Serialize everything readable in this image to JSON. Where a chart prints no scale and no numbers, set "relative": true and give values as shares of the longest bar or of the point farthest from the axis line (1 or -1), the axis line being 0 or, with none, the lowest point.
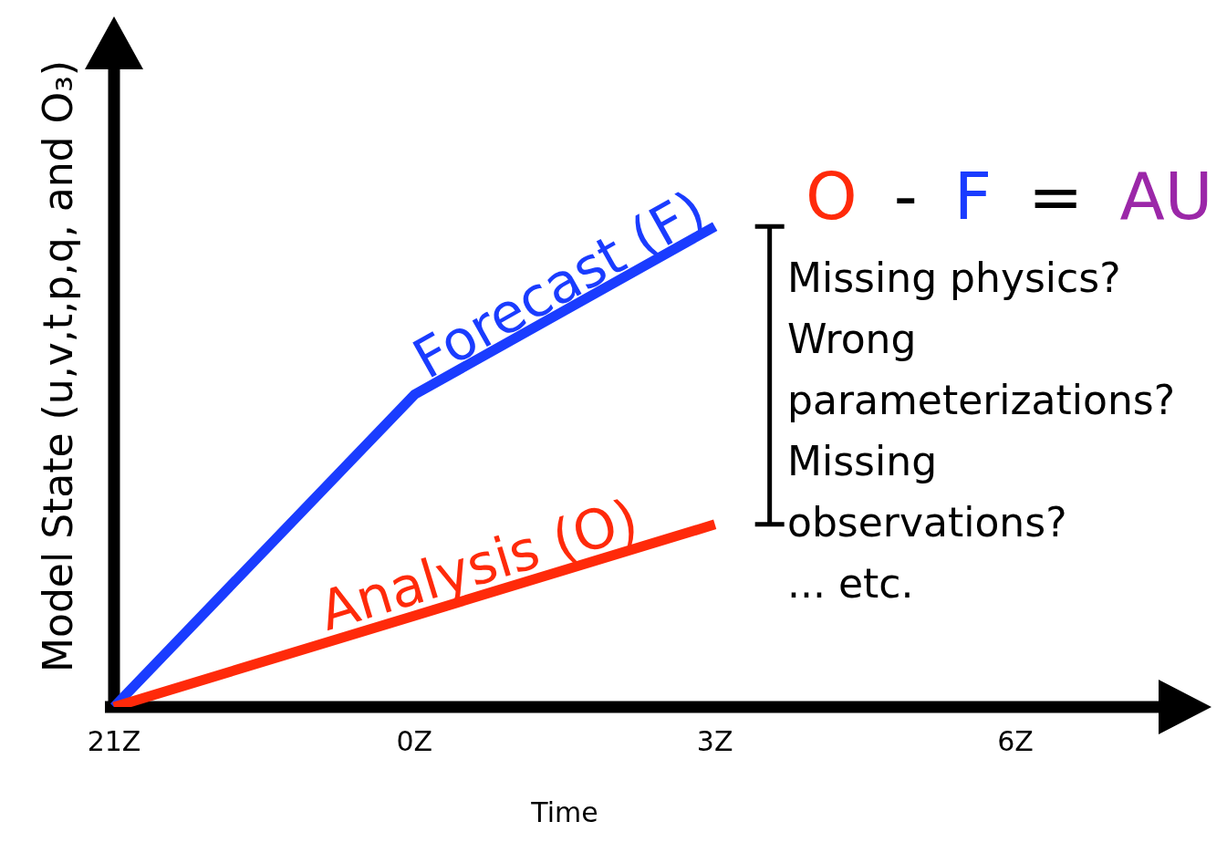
{
  "chart_data": {
    "type": "line",
    "relative": true,
    "xlabel": "Time",
    "ylabel": "Model State (u,v,t,p,q, and O₃)",
    "categories": [
      "21Z",
      "0Z",
      "3Z",
      "6Z"
    ],
    "series": [
      {
        "name": "Forecast (F)",
        "color": "#1a3cff",
        "values": [
          0,
          0.65,
          1,
          null
        ]
      },
      {
        "name": "Analysis (O)",
        "color": "#ff2a0a",
        "values": [
          0,
          0.19,
          0.38,
          null
        ]
      }
    ],
    "annotations": [
      "O - F = AU",
      "Missing physics?",
      "Wrong",
      "parameterizations?",
      "Missing",
      "observations?",
      "... etc."
    ],
    "legend": false,
    "grid": false,
    "marker": "none",
    "line_style": "solid"
  }
}
